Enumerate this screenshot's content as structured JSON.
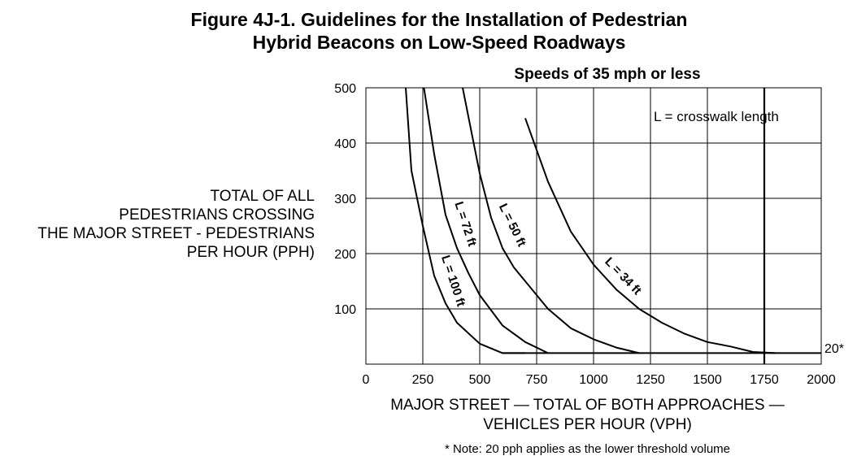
{
  "figure": {
    "title_line1": "Figure 4J-1.  Guidelines for the Installation of Pedestrian",
    "title_line2": "Hybrid Beacons on Low-Speed Roadways",
    "note": "* Note: 20 pph applies as the lower threshold volume"
  },
  "chart_data": {
    "type": "line",
    "title": "Speeds of 35 mph or less",
    "xlabel_line1": "MAJOR STREET — TOTAL OF BOTH APPROACHES —",
    "xlabel_line2": "VEHICLES PER HOUR (VPH)",
    "ylabel_lines": [
      "TOTAL OF ALL",
      "PEDESTRIANS CROSSING",
      "THE MAJOR STREET - PEDESTRIANS",
      "PER HOUR (PPH)"
    ],
    "xlim": [
      0,
      2000
    ],
    "ylim": [
      0,
      500
    ],
    "x_ticks": [
      0,
      250,
      500,
      750,
      1000,
      1250,
      1500,
      1750,
      2000
    ],
    "x_tick_labels": [
      "0",
      "250",
      "500",
      "750",
      "1000",
      "1250",
      "1500",
      "1750",
      "2000"
    ],
    "y_ticks": [
      100,
      200,
      300,
      400,
      500
    ],
    "y_tick_labels": [
      "100",
      "200",
      "300",
      "400",
      "500"
    ],
    "grid": true,
    "legend_text": "L = crosswalk length",
    "threshold": {
      "y": 20,
      "label": "20*"
    },
    "vertical_line_x": 1750,
    "series": [
      {
        "name": "L = 100 ft",
        "x": [
          175,
          200,
          250,
          300,
          350,
          400,
          500,
          600,
          700
        ],
        "y": [
          500,
          350,
          250,
          160,
          110,
          75,
          37,
          20,
          20
        ]
      },
      {
        "name": "L = 72 ft",
        "x": [
          255,
          300,
          350,
          400,
          450,
          500,
          600,
          700,
          800
        ],
        "y": [
          500,
          380,
          270,
          210,
          165,
          125,
          70,
          40,
          20
        ]
      },
      {
        "name": "L = 50 ft",
        "x": [
          425,
          500,
          550,
          600,
          650,
          700,
          800,
          900,
          1000,
          1100,
          1200
        ],
        "y": [
          500,
          345,
          265,
          210,
          175,
          150,
          100,
          65,
          45,
          30,
          20
        ]
      },
      {
        "name": "L = 34 ft",
        "x": [
          700,
          800,
          900,
          1000,
          1100,
          1200,
          1300,
          1400,
          1500,
          1600,
          1700,
          1800
        ],
        "y": [
          445,
          330,
          240,
          180,
          135,
          100,
          75,
          55,
          40,
          32,
          22,
          20
        ]
      }
    ]
  }
}
